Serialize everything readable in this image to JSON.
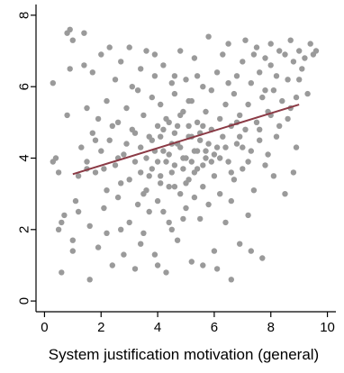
{
  "chart_data": {
    "type": "scatter",
    "title": "",
    "xlabel": "System justification motivation (general)",
    "ylabel": "",
    "xlim": [
      -0.3,
      10.3
    ],
    "ylim": [
      -0.3,
      8.3
    ],
    "x_ticks": [
      0,
      2,
      4,
      6,
      8,
      10
    ],
    "y_ticks": [
      0,
      2,
      4,
      6,
      8
    ],
    "grid": false,
    "colors": {
      "points": "#9a9a9a",
      "fit_line": "#8b3a45",
      "axis": "#000000",
      "background": "#ffffff"
    },
    "points": [
      [
        0.3,
        6.1
      ],
      [
        0.3,
        3.9
      ],
      [
        0.4,
        4.0
      ],
      [
        0.5,
        2.0
      ],
      [
        0.5,
        3.6
      ],
      [
        0.6,
        0.8
      ],
      [
        0.7,
        2.4
      ],
      [
        0.8,
        5.2
      ],
      [
        0.8,
        7.5
      ],
      [
        0.9,
        7.6
      ],
      [
        1.0,
        7.3
      ],
      [
        0.9,
        6.5
      ],
      [
        1.0,
        1.7
      ],
      [
        1.0,
        1.4
      ],
      [
        1.1,
        2.8
      ],
      [
        1.2,
        3.5
      ],
      [
        1.3,
        4.3
      ],
      [
        1.4,
        6.6
      ],
      [
        1.4,
        7.5
      ],
      [
        1.5,
        5.4
      ],
      [
        1.5,
        3.9
      ],
      [
        1.6,
        2.1
      ],
      [
        1.6,
        0.6
      ],
      [
        1.7,
        6.4
      ],
      [
        1.7,
        4.7
      ],
      [
        1.8,
        3.6
      ],
      [
        1.9,
        5.1
      ],
      [
        1.9,
        1.5
      ],
      [
        2.0,
        6.9
      ],
      [
        2.0,
        4.2
      ],
      [
        2.1,
        2.6
      ],
      [
        2.2,
        5.6
      ],
      [
        2.2,
        3.1
      ],
      [
        2.3,
        7.1
      ],
      [
        2.3,
        4.5
      ],
      [
        2.4,
        1.0
      ],
      [
        2.5,
        6.2
      ],
      [
        2.5,
        3.8
      ],
      [
        2.6,
        5.0
      ],
      [
        2.6,
        2.9
      ],
      [
        2.7,
        6.7
      ],
      [
        2.8,
        4.1
      ],
      [
        2.8,
        1.3
      ],
      [
        2.9,
        5.4
      ],
      [
        3.0,
        3.4
      ],
      [
        3.0,
        2.2
      ],
      [
        3.1,
        6.0
      ],
      [
        3.1,
        4.8
      ],
      [
        3.2,
        0.9
      ],
      [
        3.2,
        3.9
      ],
      [
        3.3,
        5.9
      ],
      [
        3.3,
        2.7
      ],
      [
        3.4,
        6.5
      ],
      [
        3.4,
        4.3
      ],
      [
        3.5,
        1.9
      ],
      [
        3.5,
        5.2
      ],
      [
        3.6,
        3.1
      ],
      [
        3.6,
        7.0
      ],
      [
        3.7,
        4.6
      ],
      [
        3.7,
        2.5
      ],
      [
        3.8,
        5.7
      ],
      [
        3.8,
        3.7
      ],
      [
        3.9,
        6.3
      ],
      [
        3.9,
        1.3
      ],
      [
        4.0,
        4.9
      ],
      [
        4.0,
        2.8
      ],
      [
        4.1,
        5.5
      ],
      [
        4.1,
        3.5
      ],
      [
        4.2,
        6.6
      ],
      [
        4.2,
        4.2
      ],
      [
        4.3,
        0.8
      ],
      [
        4.3,
        5.1
      ],
      [
        4.4,
        3.2
      ],
      [
        4.4,
        2.2
      ],
      [
        4.5,
        6.1
      ],
      [
        4.5,
        4.4
      ],
      [
        4.6,
        5.8
      ],
      [
        4.6,
        3.8
      ],
      [
        4.7,
        1.7
      ],
      [
        4.7,
        4.9
      ],
      [
        4.8,
        7.0
      ],
      [
        4.8,
        3.0
      ],
      [
        4.9,
        5.3
      ],
      [
        4.9,
        4.0
      ],
      [
        5.0,
        2.6
      ],
      [
        5.0,
        6.2
      ],
      [
        5.1,
        4.6
      ],
      [
        5.1,
        3.4
      ],
      [
        5.2,
        5.6
      ],
      [
        5.2,
        1.1
      ],
      [
        5.3,
        4.2
      ],
      [
        5.3,
        6.8
      ],
      [
        5.4,
        3.7
      ],
      [
        5.4,
        5.0
      ],
      [
        5.5,
        2.3
      ],
      [
        5.5,
        4.5
      ],
      [
        5.6,
        6.0
      ],
      [
        5.6,
        3.2
      ],
      [
        5.7,
        5.3
      ],
      [
        5.7,
        4.0
      ],
      [
        5.8,
        7.4
      ],
      [
        5.8,
        2.7
      ],
      [
        5.9,
        4.8
      ],
      [
        5.9,
        5.9
      ],
      [
        6.0,
        3.5
      ],
      [
        6.0,
        1.4
      ],
      [
        6.1,
        6.4
      ],
      [
        6.1,
        4.3
      ],
      [
        6.2,
        5.1
      ],
      [
        6.2,
        3.0
      ],
      [
        6.3,
        6.9
      ],
      [
        6.3,
        4.6
      ],
      [
        6.4,
        2.2
      ],
      [
        6.4,
        5.5
      ],
      [
        6.5,
        3.9
      ],
      [
        6.5,
        7.2
      ],
      [
        6.6,
        4.9
      ],
      [
        6.6,
        2.8
      ],
      [
        6.7,
        5.8
      ],
      [
        6.7,
        3.4
      ],
      [
        6.8,
        6.3
      ],
      [
        6.8,
        4.4
      ],
      [
        6.9,
        1.6
      ],
      [
        6.9,
        5.2
      ],
      [
        7.0,
        6.7
      ],
      [
        7.0,
        3.7
      ],
      [
        7.1,
        4.8
      ],
      [
        7.1,
        7.3
      ],
      [
        7.2,
        5.5
      ],
      [
        7.2,
        2.4
      ],
      [
        7.3,
        6.1
      ],
      [
        7.3,
        4.2
      ],
      [
        7.4,
        6.9
      ],
      [
        7.4,
        3.1
      ],
      [
        7.5,
        5.0
      ],
      [
        7.5,
        7.1
      ],
      [
        7.6,
        4.5
      ],
      [
        7.6,
        6.4
      ],
      [
        7.7,
        1.2
      ],
      [
        7.7,
        5.7
      ],
      [
        7.8,
        3.8
      ],
      [
        7.8,
        6.8
      ],
      [
        7.9,
        5.3
      ],
      [
        7.9,
        4.1
      ],
      [
        8.0,
        6.6
      ],
      [
        8.0,
        7.2
      ],
      [
        8.1,
        5.9
      ],
      [
        8.1,
        3.5
      ],
      [
        8.2,
        6.3
      ],
      [
        8.3,
        7.0
      ],
      [
        8.3,
        4.9
      ],
      [
        8.4,
        5.6
      ],
      [
        8.5,
        6.9
      ],
      [
        8.5,
        3.0
      ],
      [
        8.6,
        6.2
      ],
      [
        8.7,
        7.3
      ],
      [
        8.7,
        5.4
      ],
      [
        8.8,
        6.7
      ],
      [
        8.9,
        4.3
      ],
      [
        9.0,
        7.0
      ],
      [
        9.1,
        6.5
      ],
      [
        9.2,
        6.8
      ],
      [
        9.3,
        5.8
      ],
      [
        9.4,
        7.2
      ],
      [
        9.5,
        6.9
      ],
      [
        9.6,
        7.0
      ],
      [
        3.8,
        4.5
      ],
      [
        4.0,
        3.9
      ],
      [
        4.2,
        4.8
      ],
      [
        4.4,
        4.1
      ],
      [
        4.5,
        3.6
      ],
      [
        4.6,
        4.7
      ],
      [
        4.8,
        4.3
      ],
      [
        5.0,
        4.0
      ],
      [
        5.2,
        4.6
      ],
      [
        5.4,
        4.2
      ],
      [
        5.6,
        3.8
      ],
      [
        5.8,
        4.4
      ],
      [
        6.0,
        4.1
      ],
      [
        4.1,
        4.6
      ],
      [
        4.3,
        3.9
      ],
      [
        4.7,
        4.4
      ],
      [
        4.9,
        3.7
      ],
      [
        5.1,
        4.9
      ],
      [
        5.3,
        3.6
      ],
      [
        5.5,
        4.7
      ],
      [
        5.7,
        4.2
      ],
      [
        5.9,
        3.9
      ],
      [
        3.9,
        4.2
      ],
      [
        4.4,
        5.0
      ],
      [
        4.8,
        5.2
      ],
      [
        5.0,
        3.3
      ],
      [
        5.2,
        3.9
      ],
      [
        5.6,
        4.9
      ],
      [
        6.2,
        4.0
      ],
      [
        3.6,
        4.0
      ],
      [
        3.7,
        3.5
      ],
      [
        4.1,
        3.3
      ],
      [
        4.6,
        3.2
      ],
      [
        5.1,
        5.6
      ],
      [
        5.3,
        2.9
      ],
      [
        4.2,
        2.5
      ],
      [
        4.5,
        2.0
      ],
      [
        4.9,
        2.3
      ],
      [
        3.5,
        3.0
      ],
      [
        6.4,
        4.3
      ],
      [
        6.6,
        3.6
      ],
      [
        6.8,
        5.0
      ],
      [
        7.0,
        4.3
      ],
      [
        2.9,
        4.4
      ],
      [
        3.2,
        4.7
      ],
      [
        3.4,
        3.6
      ],
      [
        2.7,
        3.3
      ],
      [
        2.4,
        4.9
      ],
      [
        2.1,
        3.7
      ],
      [
        6.9,
        4.6
      ],
      [
        7.2,
        3.9
      ],
      [
        7.6,
        4.8
      ],
      [
        8.0,
        5.2
      ],
      [
        8.2,
        4.6
      ],
      [
        1.5,
        3.7
      ],
      [
        1.8,
        4.5
      ],
      [
        2.6,
        4.0
      ],
      [
        5.4,
        6.3
      ],
      [
        4.6,
        6.3
      ],
      [
        3.9,
        6.9
      ],
      [
        6.5,
        6.1
      ],
      [
        7.8,
        5.9
      ],
      [
        8.6,
        5.1
      ],
      [
        8.8,
        3.6
      ],
      [
        8.9,
        5.7
      ],
      [
        9.0,
        6.2
      ],
      [
        3.4,
        1.6
      ],
      [
        4.0,
        1.0
      ],
      [
        5.6,
        1.0
      ],
      [
        6.6,
        0.6
      ],
      [
        6.1,
        0.9
      ],
      [
        7.3,
        1.4
      ],
      [
        1.2,
        2.5
      ],
      [
        0.6,
        2.2
      ],
      [
        3.0,
        7.1
      ],
      [
        2.7,
        2.0
      ],
      [
        2.2,
        1.9
      ]
    ],
    "fit_line": {
      "x": [
        1.0,
        9.0
      ],
      "y": [
        3.55,
        5.5
      ]
    }
  }
}
